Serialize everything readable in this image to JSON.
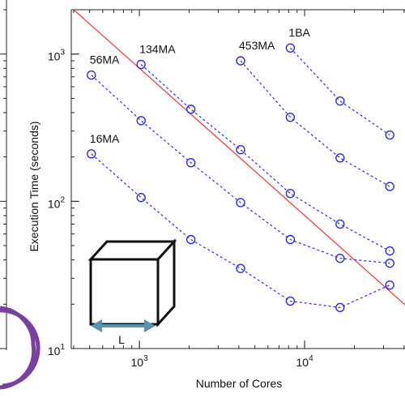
{
  "chart_data": {
    "type": "line",
    "xlabel": "Number of Cores",
    "ylabel": "Execution Time (seconds)",
    "log_x": true,
    "log_y": true,
    "xlim": [
      387,
      40500
    ],
    "ylim": [
      10,
      2000
    ],
    "xticks": [
      {
        "value": 1000,
        "label": "10",
        "exponent": "3"
      },
      {
        "value": 10000,
        "label": "10",
        "exponent": "4"
      }
    ],
    "yticks": [
      {
        "value": 10,
        "label": "10",
        "exponent": "1"
      },
      {
        "value": 100,
        "label": "10",
        "exponent": "2"
      },
      {
        "value": 1000,
        "label": "10",
        "exponent": "3"
      }
    ],
    "x": [
      512,
      1024,
      2048,
      4096,
      8192,
      16384,
      32768
    ],
    "series": [
      {
        "name": "16MA",
        "color": "#2a2aff",
        "values": [
          210,
          106,
          55,
          35,
          21,
          19,
          27
        ]
      },
      {
        "name": "56MA",
        "color": "#2a2aff",
        "values": [
          720,
          353,
          183,
          98,
          55,
          41,
          38
        ]
      },
      {
        "name": "134MA",
        "color": "#2a2aff",
        "values": [
          null,
          850,
          422,
          224,
          113,
          70,
          46
        ]
      },
      {
        "name": "453MA",
        "color": "#2a2aff",
        "values": [
          null,
          null,
          null,
          900,
          372,
          197,
          126
        ]
      },
      {
        "name": "1BA",
        "color": "#2a2aff",
        "values": [
          null,
          null,
          null,
          null,
          1100,
          480,
          282
        ]
      }
    ],
    "reference_line": {
      "color": "#ff3030",
      "x": [
        400,
        40500
      ],
      "values": [
        2000,
        19.8
      ]
    },
    "diagram_label": "L"
  }
}
